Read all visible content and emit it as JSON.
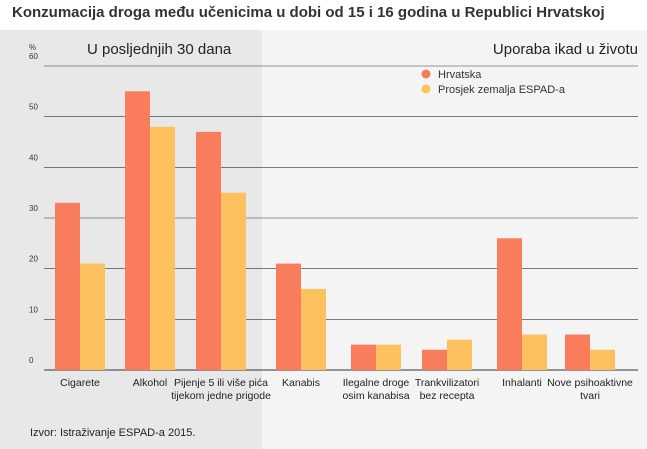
{
  "chart_data": {
    "type": "bar",
    "title": "Konzumacija droga među učenicima u dobi od 15 i 16 godina u Republici Hrvatskoj",
    "panel_left_title": "U posljednjih 30 dana",
    "panel_right_title": "Uporaba ikad u životu",
    "ylabel": "%",
    "ylim": [
      0,
      60
    ],
    "yticks": [
      0,
      10,
      20,
      30,
      40,
      50,
      60
    ],
    "grid": true,
    "legend_position": "top-right",
    "categories": [
      [
        "Cigarete"
      ],
      [
        "Alkohol"
      ],
      [
        "Pijenje 5 ili više pića",
        "tijekom jedne prigode"
      ],
      [
        "Kanabis"
      ],
      [
        "Ilegalne droge",
        "osim kanabisa"
      ],
      [
        "Trankvilizatori",
        "bez recepta"
      ],
      [
        "Inhalanti"
      ],
      [
        "Nove psihoaktivne",
        "tvari"
      ]
    ],
    "series": [
      {
        "name": "Hrvatska",
        "color": "#f97c5c",
        "values": [
          33,
          55,
          47,
          21,
          5,
          4,
          26,
          7
        ]
      },
      {
        "name": "Prosjek zemalja ESPAD-a",
        "color": "#fdc25f",
        "values": [
          21,
          48,
          35,
          16,
          5,
          6,
          7,
          4
        ]
      }
    ],
    "source": "Izvor: Istraživanje ESPAD-a 2015."
  },
  "colors": {
    "left_panel_bg": "#e8e8e8",
    "right_panel_bg": "#f4f4f4",
    "gridline": "#333333"
  }
}
